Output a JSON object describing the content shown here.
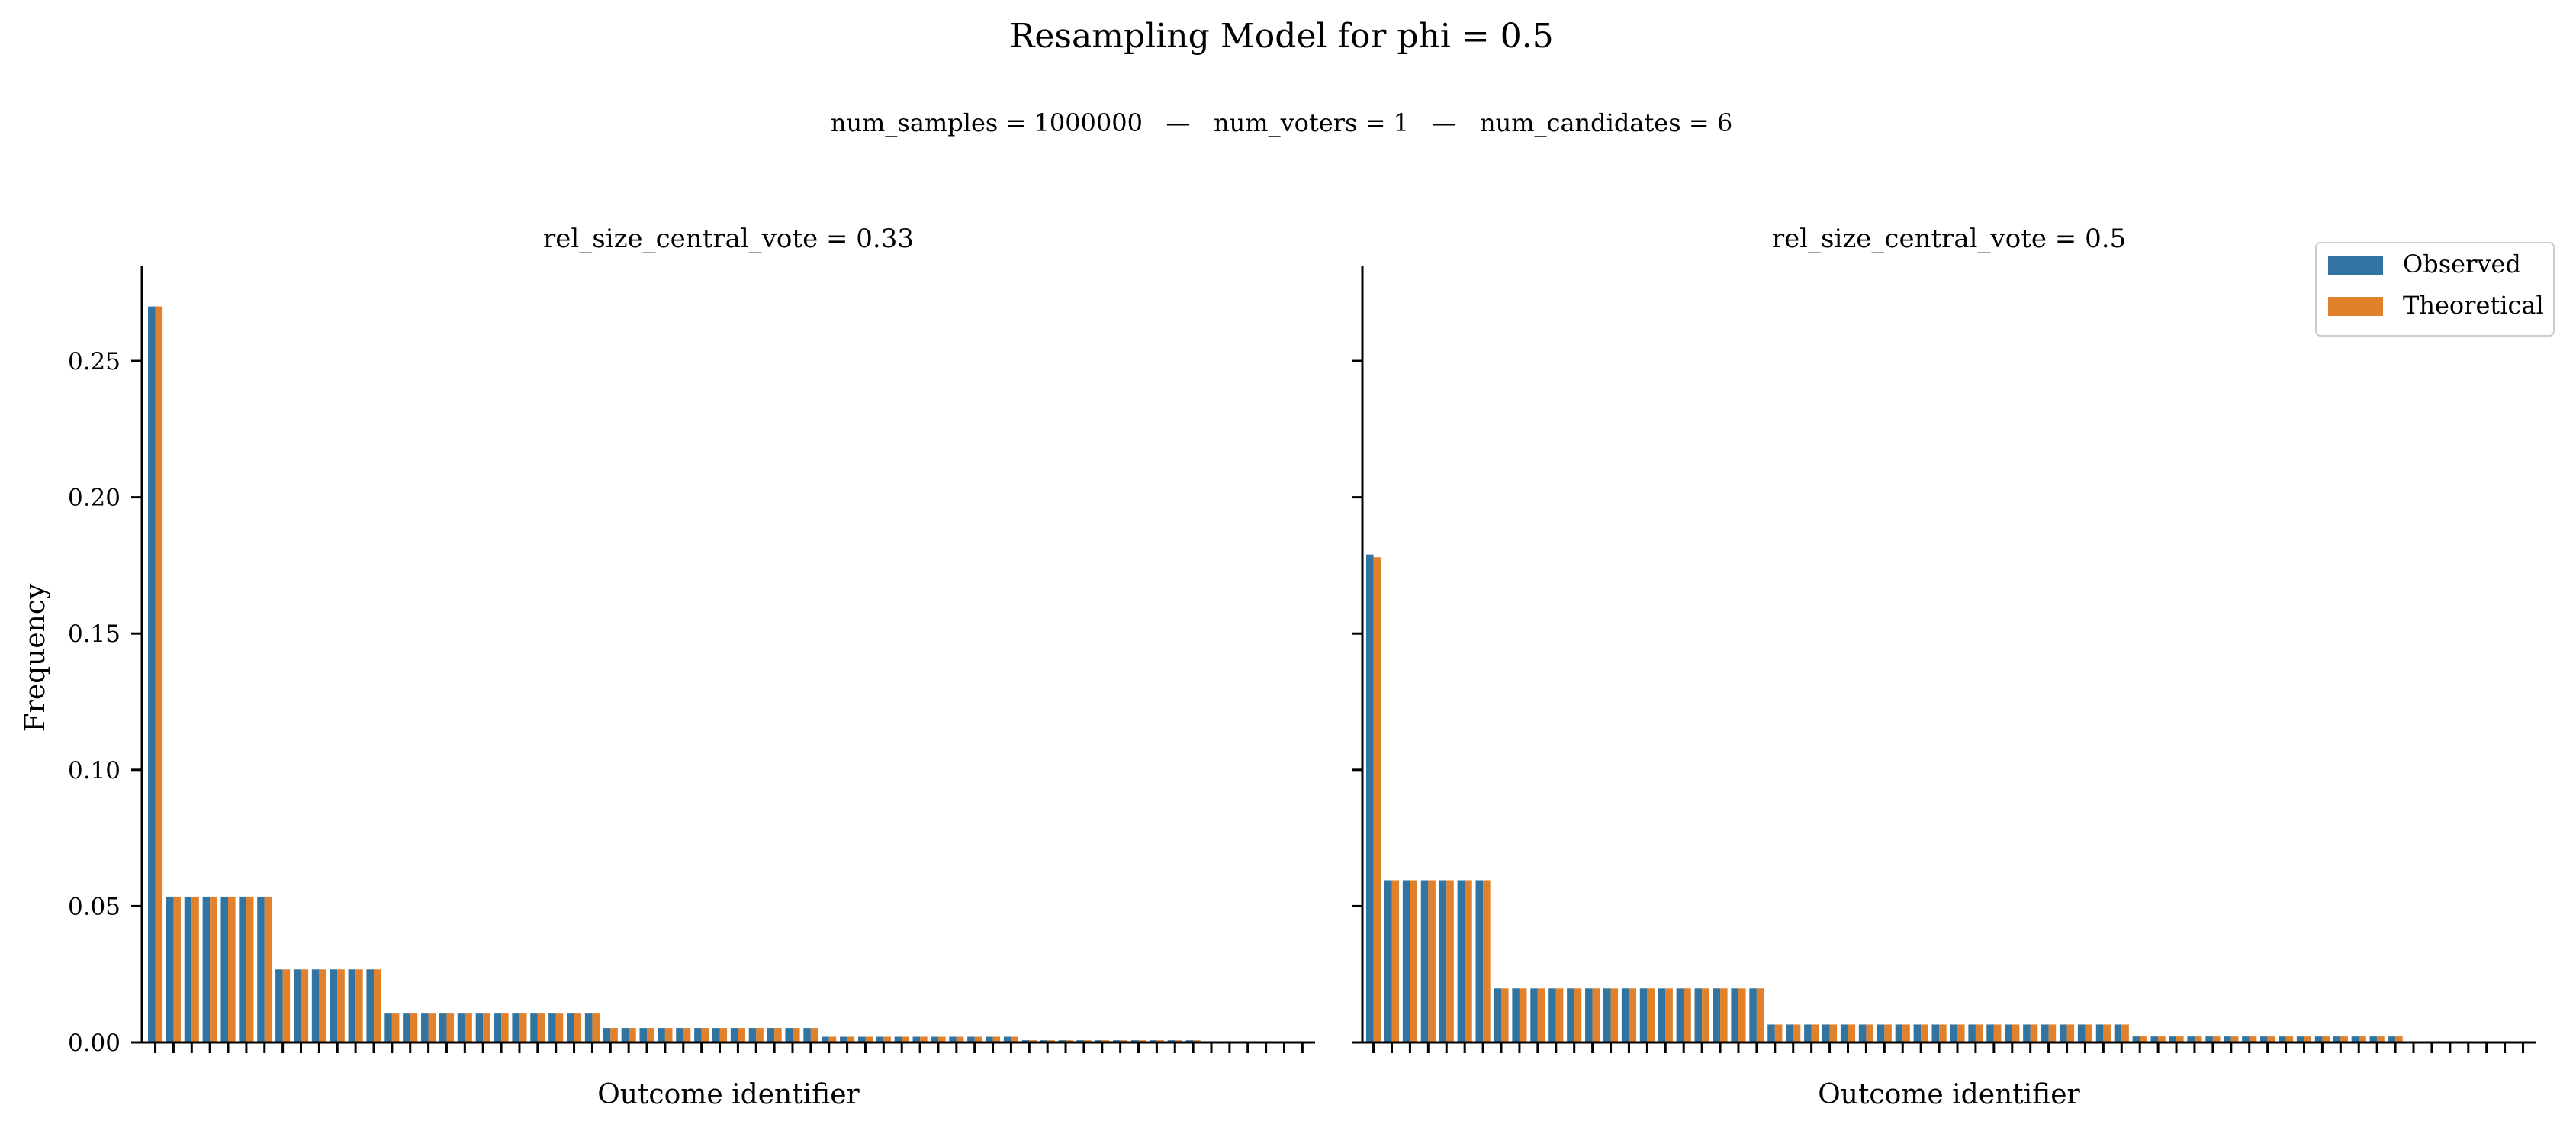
{
  "figure": {
    "title": "Resampling Model for phi = 0.5",
    "subtitle": "num_samples = 1000000   —   num_voters = 1   —   num_candidates = 6"
  },
  "legend": {
    "placement": "top-right",
    "entries": [
      {
        "label": "Observed",
        "color": "#3274a1"
      },
      {
        "label": "Theoretical",
        "color": "#e1812c"
      }
    ]
  },
  "chart_data": [
    {
      "type": "bar",
      "title": "rel_size_central_vote = 0.33",
      "xlabel": "Outcome identifier",
      "ylabel": "Frequency",
      "ylim": [
        0,
        0.285
      ],
      "yticks": [
        "0.00",
        "0.05",
        "0.10",
        "0.15",
        "0.20",
        "0.25"
      ],
      "grid": false,
      "x_tick_labels_shown": false,
      "num_categories": 64,
      "series": [
        {
          "name": "Observed",
          "color": "#3274a1",
          "groups": [
            {
              "count": 1,
              "value": 0.27
            },
            {
              "count": 6,
              "value": 0.0535
            },
            {
              "count": 6,
              "value": 0.0268
            },
            {
              "count": 12,
              "value": 0.0106
            },
            {
              "count": 12,
              "value": 0.0053
            },
            {
              "count": 11,
              "value": 0.0021
            },
            {
              "count": 10,
              "value": 0.0008
            },
            {
              "count": 6,
              "value": 0.0
            }
          ]
        },
        {
          "name": "Theoretical",
          "color": "#e1812c",
          "groups": [
            {
              "count": 1,
              "value": 0.27
            },
            {
              "count": 6,
              "value": 0.0535
            },
            {
              "count": 6,
              "value": 0.0268
            },
            {
              "count": 12,
              "value": 0.0106
            },
            {
              "count": 12,
              "value": 0.0053
            },
            {
              "count": 11,
              "value": 0.0021
            },
            {
              "count": 10,
              "value": 0.0008
            },
            {
              "count": 6,
              "value": 0.0
            }
          ]
        }
      ]
    },
    {
      "type": "bar",
      "title": "rel_size_central_vote = 0.5",
      "xlabel": "Outcome identifier",
      "ylabel": "",
      "ylim": [
        0,
        0.285
      ],
      "yticks": [],
      "grid": false,
      "x_tick_labels_shown": false,
      "num_categories": 64,
      "series": [
        {
          "name": "Observed",
          "color": "#3274a1",
          "groups": [
            {
              "count": 1,
              "value": 0.179
            },
            {
              "count": 6,
              "value": 0.0595
            },
            {
              "count": 15,
              "value": 0.0198
            },
            {
              "count": 20,
              "value": 0.0066
            },
            {
              "count": 15,
              "value": 0.0022
            },
            {
              "count": 7,
              "value": 0.0
            }
          ]
        },
        {
          "name": "Theoretical",
          "color": "#e1812c",
          "groups": [
            {
              "count": 1,
              "value": 0.178
            },
            {
              "count": 6,
              "value": 0.0595
            },
            {
              "count": 15,
              "value": 0.0198
            },
            {
              "count": 20,
              "value": 0.0066
            },
            {
              "count": 15,
              "value": 0.0022
            },
            {
              "count": 7,
              "value": 0.0
            }
          ]
        }
      ]
    }
  ]
}
